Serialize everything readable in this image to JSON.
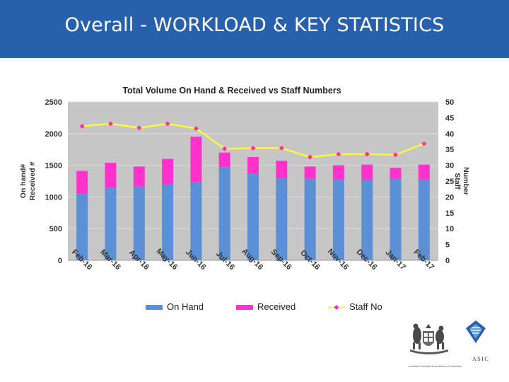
{
  "slide": {
    "title": "Overall - WORKLOAD & KEY STATISTICS"
  },
  "logo": {
    "text": "ASIC",
    "subtitle": "Australian Securities & Investments Commission"
  },
  "chart_data": {
    "type": "bar",
    "title": "Total Volume On Hand & Received vs Staff Numbers",
    "categories": [
      "Feb-16",
      "Mar-16",
      "Apr-16",
      "May-16",
      "Jun-16",
      "Jul-16",
      "Aug-16",
      "Sep-16",
      "Oct-16",
      "Nov-16",
      "Dec-16",
      "Jan-17",
      "Feb-17"
    ],
    "series": [
      {
        "name": "On Hand",
        "kind": "stacked-bar",
        "axis": "left",
        "color": "#5b8fd6",
        "values": [
          1060,
          1150,
          1170,
          1200,
          1230,
          1470,
          1370,
          1300,
          1290,
          1270,
          1270,
          1290,
          1270
        ]
      },
      {
        "name": "Received",
        "kind": "stacked-bar",
        "axis": "left",
        "color": "#ff33cc",
        "values": [
          350,
          390,
          310,
          400,
          720,
          230,
          260,
          270,
          190,
          230,
          240,
          170,
          240
        ]
      },
      {
        "name": "Staff No",
        "kind": "line",
        "axis": "right",
        "color": "#ffff33",
        "marker_color": "#ff3399",
        "values": [
          42.3,
          43.1,
          41.8,
          43.1,
          41.6,
          35.2,
          35.4,
          35.4,
          32.6,
          33.5,
          33.5,
          33.3,
          36.8
        ]
      }
    ],
    "ylabel": "On hand#\nReceived #",
    "y2label": "Staff\nNumber",
    "ylim": [
      0,
      2500
    ],
    "yticks": [
      0,
      500,
      1000,
      1500,
      2000,
      2500
    ],
    "y2lim": [
      0,
      50
    ],
    "y2ticks": [
      0,
      5,
      10,
      15,
      20,
      25,
      30,
      35,
      40,
      45,
      50
    ],
    "grid": true,
    "legend_position": "bottom",
    "colors": {
      "plot_bg": "#c6c6c6",
      "grid": "#dedede"
    }
  }
}
